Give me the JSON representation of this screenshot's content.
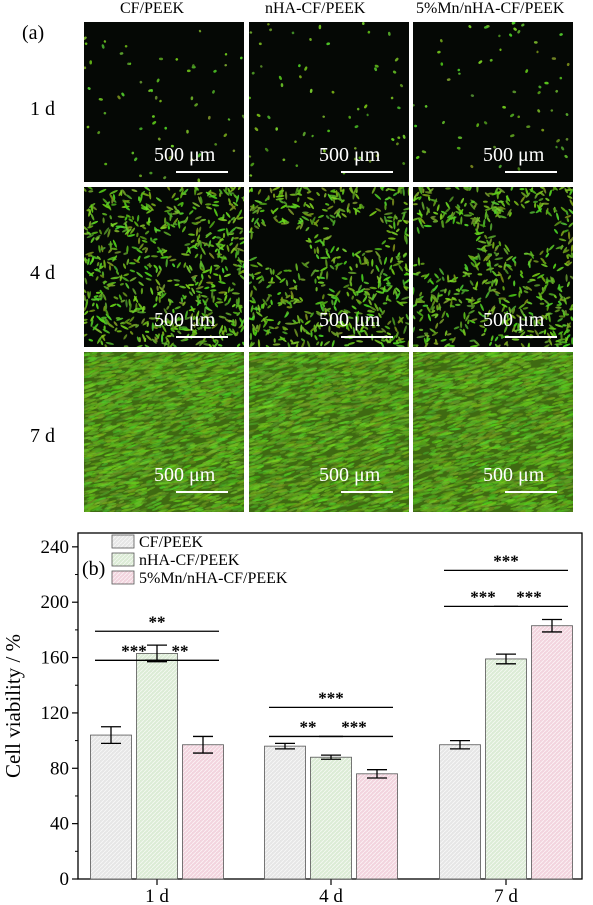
{
  "panel_a": {
    "label": "(a)",
    "columns": [
      "CF/PEEK",
      "nHA-CF/PEEK",
      "5%Mn/nHA-CF/PEEK"
    ],
    "rows": [
      "1 d",
      "4 d",
      "7 d"
    ],
    "scale_bar_label": "500 μm",
    "images": [
      [
        "1 d CF/PEEK fluorescence micrograph",
        "1 d nHA-CF/PEEK fluorescence micrograph",
        "1 d 5%Mn/nHA-CF/PEEK fluorescence micrograph"
      ],
      [
        "4 d CF/PEEK fluorescence micrograph",
        "4 d nHA-CF/PEEK fluorescence micrograph",
        "4 d 5%Mn/nHA-CF/PEEK fluorescence micrograph"
      ],
      [
        "7 d CF/PEEK fluorescence micrograph",
        "7 d nHA-CF/PEEK fluorescence micrograph",
        "7 d 5%Mn/nHA-CF/PEEK fluorescence micrograph"
      ]
    ],
    "colors": {
      "background": "#050805",
      "cells": "#7fc02a"
    }
  },
  "chart_data": {
    "type": "bar",
    "panel_label": "(b)",
    "title": "",
    "xlabel": "",
    "ylabel": "Cell viability / %",
    "ylim": [
      0,
      250
    ],
    "yticks": [
      0,
      40,
      80,
      120,
      160,
      200,
      240
    ],
    "categories": [
      "1 d",
      "4 d",
      "7 d"
    ],
    "legend_position": "top-left",
    "series": [
      {
        "name": "CF/PEEK",
        "values": [
          104,
          96,
          97
        ],
        "errors": [
          6,
          2,
          3
        ],
        "color": "#e6e6e6"
      },
      {
        "name": "nHA-CF/PEEK",
        "values": [
          163,
          88,
          159
        ],
        "errors": [
          6,
          1.5,
          3.5
        ],
        "color": "#dcecd6"
      },
      {
        "name": "5%Mn/nHA-CF/PEEK",
        "values": [
          97,
          76,
          183
        ],
        "errors": [
          6,
          3,
          4.5
        ],
        "color": "#f2d4de"
      }
    ],
    "significance": [
      {
        "category": "1 d",
        "from": 0,
        "to": 1,
        "label": "***",
        "y": 158
      },
      {
        "category": "1 d",
        "from": 1,
        "to": 2,
        "label": "**",
        "y": 158
      },
      {
        "category": "1 d",
        "from": 0,
        "to": 2,
        "label": "**",
        "y": 179
      },
      {
        "category": "4 d",
        "from": 0,
        "to": 1,
        "label": "**",
        "y": 103
      },
      {
        "category": "4 d",
        "from": 1,
        "to": 2,
        "label": "***",
        "y": 103
      },
      {
        "category": "4 d",
        "from": 0,
        "to": 2,
        "label": "***",
        "y": 124
      },
      {
        "category": "7 d",
        "from": 0,
        "to": 1,
        "label": "***",
        "y": 197
      },
      {
        "category": "7 d",
        "from": 1,
        "to": 2,
        "label": "***",
        "y": 197
      },
      {
        "category": "7 d",
        "from": 0,
        "to": 2,
        "label": "***",
        "y": 223
      }
    ]
  }
}
